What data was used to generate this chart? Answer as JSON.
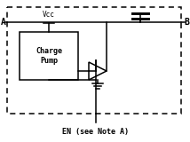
{
  "fig_width": 2.14,
  "fig_height": 1.6,
  "dpi": 100,
  "bg_color": "#ffffff",
  "line_color": "#000000",
  "label_A": "A",
  "label_B": "B",
  "label_Vcc": "Vcc",
  "label_box": "Charge\nPump",
  "label_EN": "EN (see Note A)",
  "font_size": 7,
  "font_size_small": 5.5,
  "font_size_en": 6
}
